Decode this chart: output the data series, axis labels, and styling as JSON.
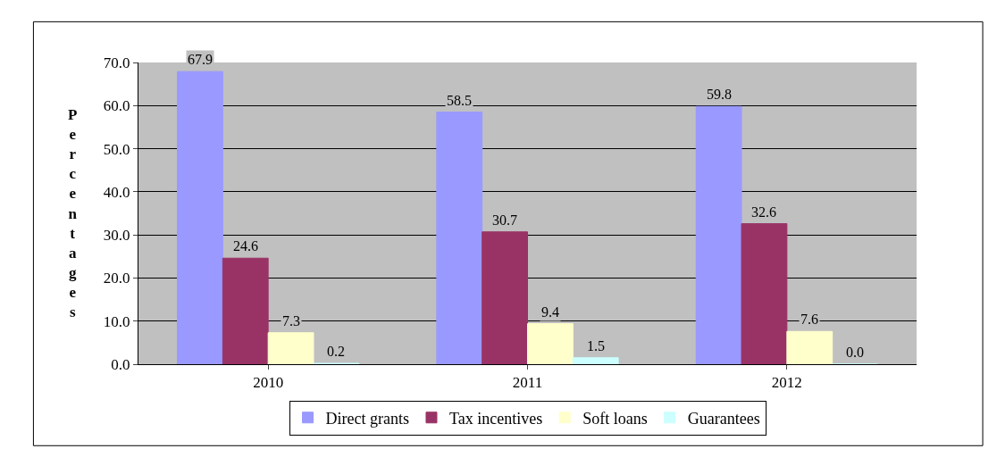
{
  "chart_data": {
    "type": "bar",
    "ylabel": "Percentages",
    "categories": [
      "2010",
      "2011",
      "2012"
    ],
    "series": [
      {
        "name": "Direct grants",
        "color": "#9999ff",
        "values": [
          67.9,
          58.5,
          59.8
        ],
        "value_labels": [
          "67.9",
          "58.5",
          "59.8"
        ]
      },
      {
        "name": "Tax incentives",
        "color": "#993366",
        "values": [
          24.6,
          30.7,
          32.6
        ],
        "value_labels": [
          "24.6",
          "30.7",
          "32.6"
        ]
      },
      {
        "name": "Soft loans",
        "color": "#ffffcc",
        "values": [
          7.3,
          9.4,
          7.6
        ],
        "value_labels": [
          "7.3",
          "9.4",
          "7.6"
        ]
      },
      {
        "name": "Guarantees",
        "color": "#ccffff",
        "values": [
          0.2,
          1.5,
          0.0
        ],
        "value_labels": [
          "0.2",
          "1.5",
          "0.0"
        ]
      }
    ],
    "ylim": [
      0,
      70
    ],
    "yticks": [
      {
        "value": 0,
        "label": "0.0"
      },
      {
        "value": 10,
        "label": "10.0"
      },
      {
        "value": 20,
        "label": "20.0"
      },
      {
        "value": 30,
        "label": "30.0"
      },
      {
        "value": 40,
        "label": "40.0"
      },
      {
        "value": 50,
        "label": "50.0"
      },
      {
        "value": 60,
        "label": "60.0"
      },
      {
        "value": 70,
        "label": "70.0"
      }
    ],
    "grid": "y",
    "legend": "bottom"
  }
}
